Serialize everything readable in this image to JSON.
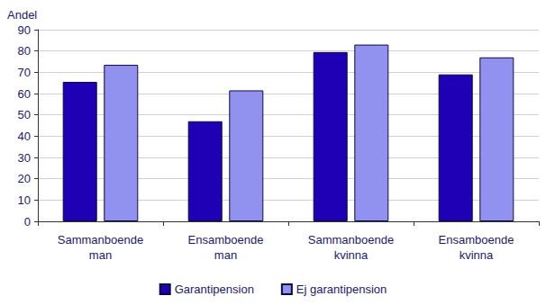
{
  "chart_data": {
    "type": "bar",
    "ylabel": "Andel",
    "categories": [
      "Sammanboende\nman",
      "Ensamboende\nman",
      "Sammanboende\nkvinna",
      "Ensamboende\nkvinna"
    ],
    "series": [
      {
        "name": "Garantipension",
        "color": "#1f00b5",
        "values": [
          65.5,
          47,
          79.5,
          69
        ]
      },
      {
        "name": "Ej garantipension",
        "color": "#9191f0",
        "values": [
          73.5,
          61.5,
          83,
          77
        ]
      }
    ],
    "ylim": [
      0,
      90
    ],
    "yticks": [
      0,
      10,
      20,
      30,
      40,
      50,
      60,
      70,
      80,
      90
    ],
    "grid": true,
    "legend": "bottom"
  }
}
